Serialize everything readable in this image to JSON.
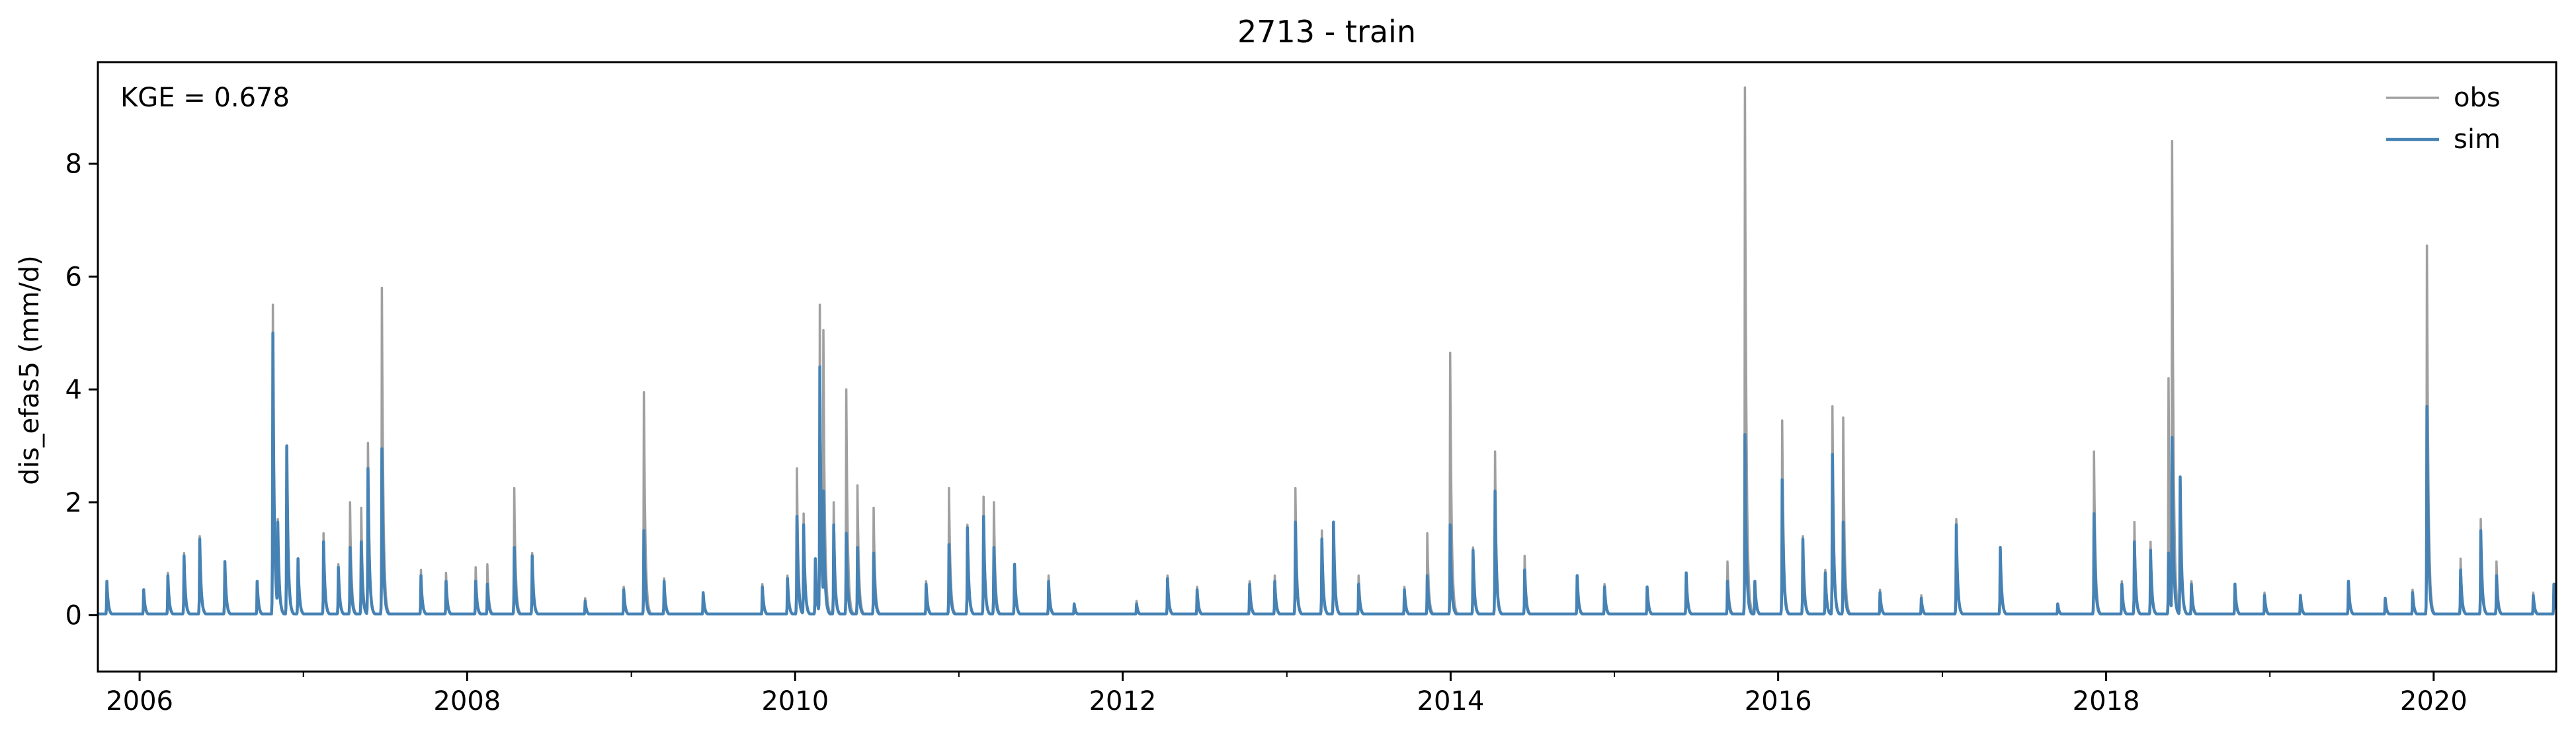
{
  "chart_data": {
    "type": "line",
    "title": "2713 - train",
    "xlabel": "",
    "ylabel": "dis_efas5 (mm/d)",
    "annotation": "KGE = 0.678",
    "xlim": [
      "2005-09-30",
      "2020-09-30"
    ],
    "ylim": [
      -1.0,
      9.8
    ],
    "x_ticks": [
      "2006",
      "2008",
      "2010",
      "2012",
      "2014",
      "2016",
      "2018",
      "2020"
    ],
    "y_ticks": [
      "0",
      "2",
      "4",
      "6",
      "8"
    ],
    "legend": {
      "position": "top-right",
      "entries": [
        "obs",
        "sim"
      ]
    },
    "grid": false,
    "colors": {
      "obs": "#a0a0a0",
      "sim": "#4682b4"
    },
    "series": [
      {
        "name": "obs",
        "peaks": [
          [
            "2005-10-20",
            0.55
          ],
          [
            "2006-01-10",
            0.45
          ],
          [
            "2006-03-05",
            0.75
          ],
          [
            "2006-04-10",
            1.1
          ],
          [
            "2006-05-15",
            1.4
          ],
          [
            "2006-07-10",
            0.9
          ],
          [
            "2006-09-20",
            0.6
          ],
          [
            "2006-10-25",
            5.5
          ],
          [
            "2006-11-05",
            1.7
          ],
          [
            "2006-11-25",
            3.0
          ],
          [
            "2006-12-20",
            1.0
          ],
          [
            "2007-02-15",
            1.45
          ],
          [
            "2007-03-20",
            0.9
          ],
          [
            "2007-04-15",
            2.0
          ],
          [
            "2007-05-10",
            1.9
          ],
          [
            "2007-05-25",
            3.05
          ],
          [
            "2007-06-25",
            5.8
          ],
          [
            "2007-09-20",
            0.8
          ],
          [
            "2007-11-15",
            0.75
          ],
          [
            "2008-01-20",
            0.85
          ],
          [
            "2008-02-15",
            0.9
          ],
          [
            "2008-04-15",
            2.25
          ],
          [
            "2008-05-25",
            1.1
          ],
          [
            "2008-09-20",
            0.3
          ],
          [
            "2008-12-15",
            0.5
          ],
          [
            "2009-01-29",
            3.95
          ],
          [
            "2009-03-15",
            0.65
          ],
          [
            "2009-06-10",
            0.4
          ],
          [
            "2009-10-20",
            0.55
          ],
          [
            "2009-12-15",
            0.7
          ],
          [
            "2010-01-05",
            2.6
          ],
          [
            "2010-01-20",
            1.8
          ],
          [
            "2010-02-15",
            1.0
          ],
          [
            "2010-02-25",
            5.5
          ],
          [
            "2010-03-05",
            5.05
          ],
          [
            "2010-03-28",
            2.0
          ],
          [
            "2010-04-25",
            4.0
          ],
          [
            "2010-05-20",
            2.3
          ],
          [
            "2010-06-25",
            1.9
          ],
          [
            "2010-10-20",
            0.6
          ],
          [
            "2010-12-10",
            2.25
          ],
          [
            "2011-01-20",
            1.6
          ],
          [
            "2011-02-25",
            2.1
          ],
          [
            "2011-03-20",
            2.0
          ],
          [
            "2011-05-05",
            0.9
          ],
          [
            "2011-07-20",
            0.7
          ],
          [
            "2011-09-15",
            0.2
          ],
          [
            "2012-02-01",
            0.25
          ],
          [
            "2012-04-10",
            0.7
          ],
          [
            "2012-06-15",
            0.5
          ],
          [
            "2012-10-10",
            0.6
          ],
          [
            "2012-12-05",
            0.7
          ],
          [
            "2013-01-20",
            2.25
          ],
          [
            "2013-03-20",
            1.5
          ],
          [
            "2013-04-15",
            1.6
          ],
          [
            "2013-06-10",
            0.7
          ],
          [
            "2013-09-20",
            0.5
          ],
          [
            "2013-11-10",
            1.45
          ],
          [
            "2013-12-31",
            4.65
          ],
          [
            "2014-02-20",
            1.2
          ],
          [
            "2014-04-10",
            2.9
          ],
          [
            "2014-06-15",
            1.05
          ],
          [
            "2014-10-10",
            0.7
          ],
          [
            "2014-12-10",
            0.55
          ],
          [
            "2015-03-15",
            0.5
          ],
          [
            "2015-06-10",
            0.75
          ],
          [
            "2015-09-10",
            0.95
          ],
          [
            "2015-10-19",
            9.35
          ],
          [
            "2015-11-10",
            0.6
          ],
          [
            "2016-01-10",
            3.45
          ],
          [
            "2016-02-25",
            1.4
          ],
          [
            "2016-04-15",
            0.8
          ],
          [
            "2016-05-01",
            3.7
          ],
          [
            "2016-05-25",
            3.5
          ],
          [
            "2016-08-15",
            0.45
          ],
          [
            "2016-11-15",
            0.35
          ],
          [
            "2017-02-01",
            1.7
          ],
          [
            "2017-05-10",
            1.2
          ],
          [
            "2017-09-15",
            0.2
          ],
          [
            "2017-12-05",
            2.9
          ],
          [
            "2018-02-05",
            0.6
          ],
          [
            "2018-03-05",
            1.65
          ],
          [
            "2018-04-10",
            1.3
          ],
          [
            "2018-05-20",
            4.2
          ],
          [
            "2018-05-28",
            8.4
          ],
          [
            "2018-06-15",
            2.45
          ],
          [
            "2018-07-10",
            0.6
          ],
          [
            "2018-10-15",
            0.55
          ],
          [
            "2018-12-20",
            0.4
          ],
          [
            "2019-03-10",
            0.35
          ],
          [
            "2019-06-25",
            0.6
          ],
          [
            "2019-09-15",
            0.3
          ],
          [
            "2019-11-15",
            0.45
          ],
          [
            "2019-12-17",
            6.55
          ],
          [
            "2020-03-01",
            1.0
          ],
          [
            "2020-04-15",
            1.7
          ],
          [
            "2020-05-20",
            0.95
          ],
          [
            "2020-08-10",
            0.4
          ],
          [
            "2020-09-25",
            0.55
          ]
        ]
      },
      {
        "name": "sim",
        "peaks": [
          [
            "2005-10-20",
            0.6
          ],
          [
            "2006-01-10",
            0.45
          ],
          [
            "2006-03-05",
            0.7
          ],
          [
            "2006-04-10",
            1.05
          ],
          [
            "2006-05-15",
            1.35
          ],
          [
            "2006-07-10",
            0.95
          ],
          [
            "2006-09-20",
            0.6
          ],
          [
            "2006-10-25",
            5.0
          ],
          [
            "2006-11-05",
            1.65
          ],
          [
            "2006-11-25",
            3.0
          ],
          [
            "2006-12-20",
            1.0
          ],
          [
            "2007-02-15",
            1.3
          ],
          [
            "2007-03-20",
            0.85
          ],
          [
            "2007-04-15",
            1.2
          ],
          [
            "2007-05-10",
            1.3
          ],
          [
            "2007-05-25",
            2.6
          ],
          [
            "2007-06-25",
            2.95
          ],
          [
            "2007-09-20",
            0.7
          ],
          [
            "2007-11-15",
            0.6
          ],
          [
            "2008-01-20",
            0.6
          ],
          [
            "2008-02-15",
            0.55
          ],
          [
            "2008-04-15",
            1.2
          ],
          [
            "2008-05-25",
            1.05
          ],
          [
            "2008-09-20",
            0.25
          ],
          [
            "2008-12-15",
            0.45
          ],
          [
            "2009-01-29",
            1.5
          ],
          [
            "2009-03-15",
            0.6
          ],
          [
            "2009-06-10",
            0.4
          ],
          [
            "2009-10-20",
            0.5
          ],
          [
            "2009-12-15",
            0.65
          ],
          [
            "2010-01-05",
            1.75
          ],
          [
            "2010-01-20",
            1.6
          ],
          [
            "2010-02-15",
            1.0
          ],
          [
            "2010-02-25",
            4.4
          ],
          [
            "2010-03-05",
            2.2
          ],
          [
            "2010-03-28",
            1.6
          ],
          [
            "2010-04-25",
            1.45
          ],
          [
            "2010-05-20",
            1.2
          ],
          [
            "2010-06-25",
            1.1
          ],
          [
            "2010-10-20",
            0.55
          ],
          [
            "2010-12-10",
            1.25
          ],
          [
            "2011-01-20",
            1.55
          ],
          [
            "2011-02-25",
            1.75
          ],
          [
            "2011-03-20",
            1.2
          ],
          [
            "2011-05-05",
            0.9
          ],
          [
            "2011-07-20",
            0.6
          ],
          [
            "2011-09-15",
            0.2
          ],
          [
            "2012-02-01",
            0.2
          ],
          [
            "2012-04-10",
            0.65
          ],
          [
            "2012-06-15",
            0.45
          ],
          [
            "2012-10-10",
            0.55
          ],
          [
            "2012-12-05",
            0.6
          ],
          [
            "2013-01-20",
            1.65
          ],
          [
            "2013-03-20",
            1.35
          ],
          [
            "2013-04-15",
            1.65
          ],
          [
            "2013-06-10",
            0.55
          ],
          [
            "2013-09-20",
            0.45
          ],
          [
            "2013-11-10",
            0.7
          ],
          [
            "2013-12-31",
            1.6
          ],
          [
            "2014-02-20",
            1.15
          ],
          [
            "2014-04-10",
            2.2
          ],
          [
            "2014-06-15",
            0.8
          ],
          [
            "2014-10-10",
            0.7
          ],
          [
            "2014-12-10",
            0.5
          ],
          [
            "2015-03-15",
            0.5
          ],
          [
            "2015-06-10",
            0.75
          ],
          [
            "2015-09-10",
            0.6
          ],
          [
            "2015-10-19",
            3.2
          ],
          [
            "2015-11-10",
            0.6
          ],
          [
            "2016-01-10",
            2.4
          ],
          [
            "2016-02-25",
            1.35
          ],
          [
            "2016-04-15",
            0.75
          ],
          [
            "2016-05-01",
            2.85
          ],
          [
            "2016-05-25",
            1.65
          ],
          [
            "2016-08-15",
            0.4
          ],
          [
            "2016-11-15",
            0.3
          ],
          [
            "2017-02-01",
            1.6
          ],
          [
            "2017-05-10",
            1.2
          ],
          [
            "2017-09-15",
            0.2
          ],
          [
            "2017-12-05",
            1.8
          ],
          [
            "2018-02-05",
            0.55
          ],
          [
            "2018-03-05",
            1.3
          ],
          [
            "2018-04-10",
            1.15
          ],
          [
            "2018-05-20",
            1.1
          ],
          [
            "2018-05-28",
            3.15
          ],
          [
            "2018-06-15",
            2.45
          ],
          [
            "2018-07-10",
            0.55
          ],
          [
            "2018-10-15",
            0.55
          ],
          [
            "2018-12-20",
            0.35
          ],
          [
            "2019-03-10",
            0.35
          ],
          [
            "2019-06-25",
            0.6
          ],
          [
            "2019-09-15",
            0.3
          ],
          [
            "2019-11-15",
            0.4
          ],
          [
            "2019-12-17",
            3.7
          ],
          [
            "2020-03-01",
            0.8
          ],
          [
            "2020-04-15",
            1.5
          ],
          [
            "2020-05-20",
            0.7
          ],
          [
            "2020-08-10",
            0.35
          ],
          [
            "2020-09-25",
            0.55
          ]
        ]
      }
    ]
  }
}
